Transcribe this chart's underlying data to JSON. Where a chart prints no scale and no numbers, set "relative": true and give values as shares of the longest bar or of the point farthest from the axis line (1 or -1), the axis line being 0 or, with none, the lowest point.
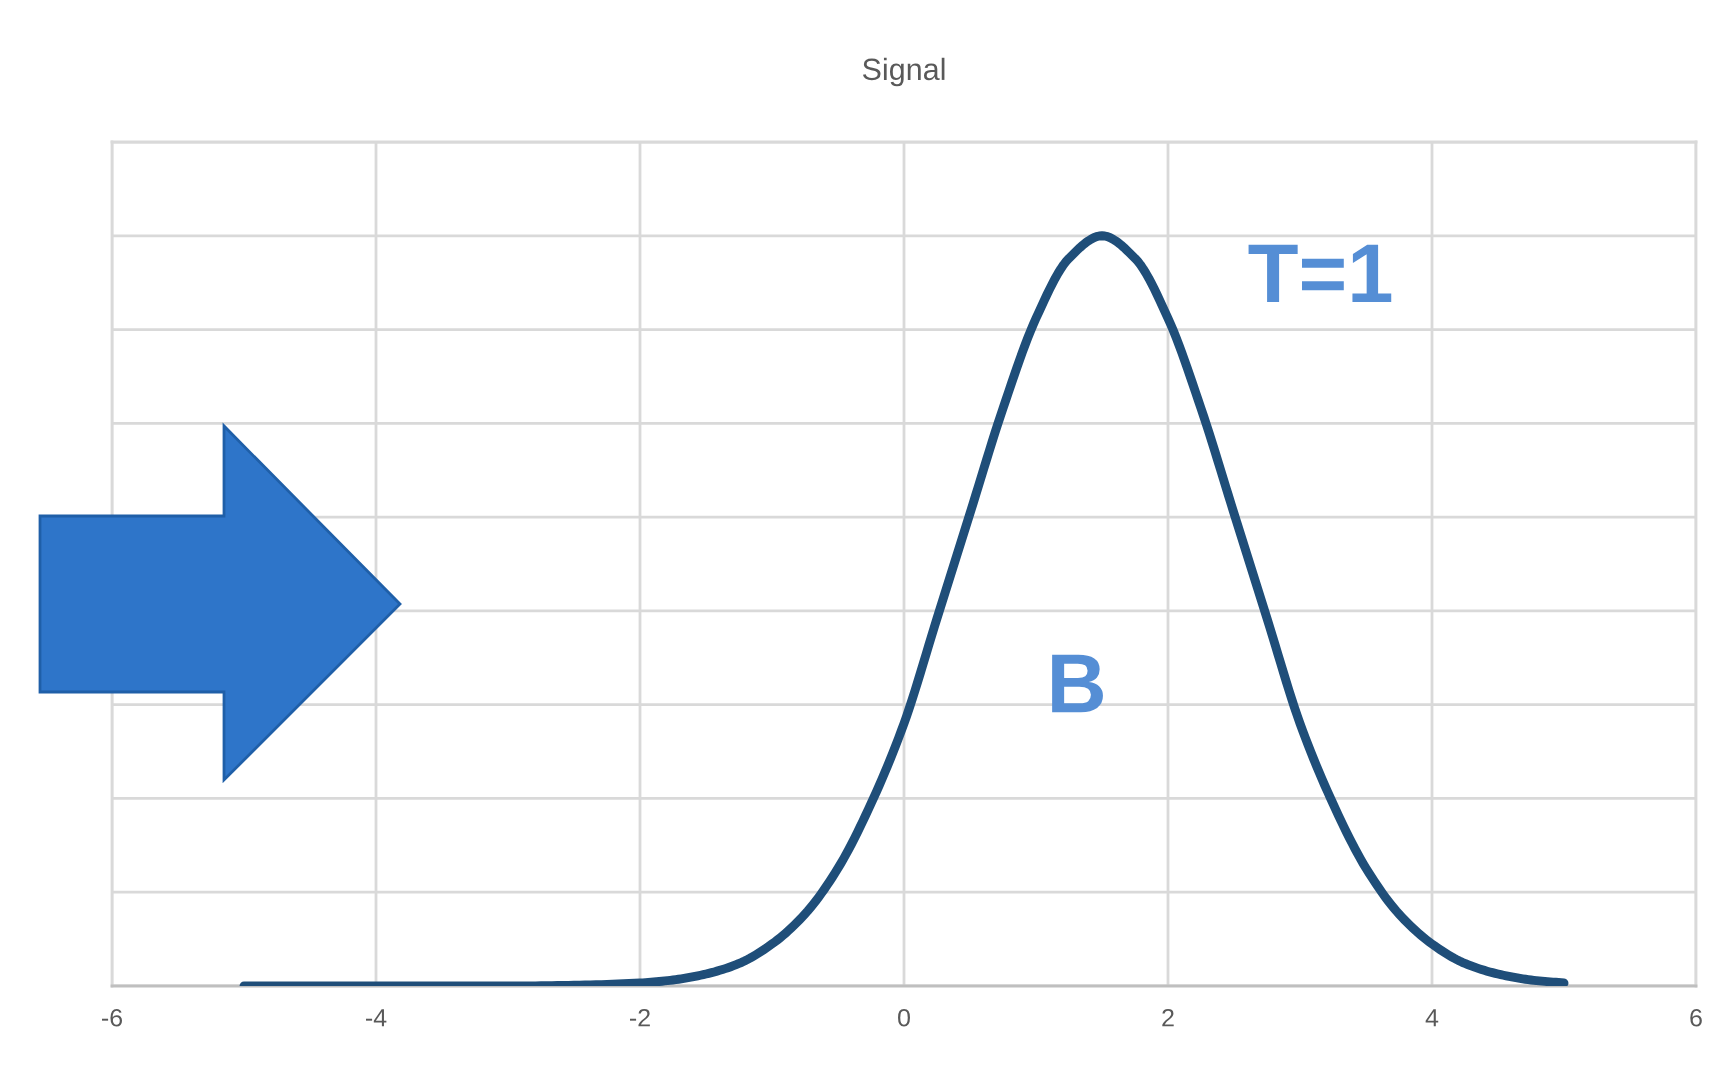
{
  "chart_data": {
    "type": "line",
    "title": "Signal",
    "relative": true,
    "x": [
      -5,
      -4,
      -3,
      -2.5,
      -2,
      -1.75,
      -1.5,
      -1.25,
      -1,
      -0.75,
      -0.5,
      -0.25,
      0,
      0.25,
      0.5,
      0.75,
      1,
      1.25,
      1.5,
      1.75,
      2,
      2.25,
      2.5,
      2.75,
      3,
      3.25,
      3.5,
      3.75,
      4,
      4.25,
      4.5,
      4.75,
      5
    ],
    "series": [
      {
        "color": "#1f4e79",
        "values": [
          0,
          0,
          0,
          0.001,
          0.004,
          0.008,
          0.016,
          0.03,
          0.056,
          0.096,
          0.157,
          0.243,
          0.35,
          0.49,
          0.63,
          0.77,
          0.89,
          0.97,
          1,
          0.97,
          0.89,
          0.77,
          0.63,
          0.49,
          0.35,
          0.243,
          0.157,
          0.096,
          0.056,
          0.03,
          0.016,
          0.008,
          0.004
        ]
      }
    ],
    "xlim": [
      -6,
      6
    ],
    "xticks": [
      -6,
      -4,
      -2,
      0,
      2,
      4,
      6
    ],
    "annotations": [
      "T=1",
      "B"
    ],
    "grid": true,
    "marker": "none",
    "line_style": "solid"
  }
}
